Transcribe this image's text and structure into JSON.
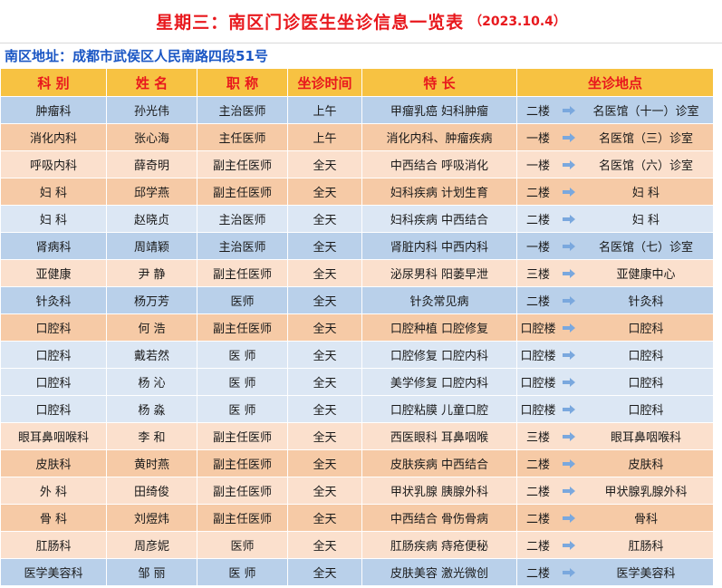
{
  "title": "星期三：南区门诊医生坐诊信息一览表",
  "date": "（2023.10.4）",
  "address": "南区地址：成都市武侯区人民南路四段51号",
  "headers": [
    "科 别",
    "姓 名",
    "职 称",
    "坐诊时间",
    "特 长",
    "坐诊地点"
  ],
  "rows": [
    {
      "dept": "肿瘤科",
      "name": "孙光伟",
      "title": "主治医师",
      "time": "上午",
      "specialty": "甲瘤乳癌 妇科肿瘤",
      "floor": "二楼",
      "place": "名医馆（十一）诊室"
    },
    {
      "dept": "消化内科",
      "name": "张心海",
      "title": "主任医师",
      "time": "上午",
      "specialty": "消化内科、肿瘤疾病",
      "floor": "一楼",
      "place": "名医馆（三）诊室"
    },
    {
      "dept": "呼吸内科",
      "name": "薛奇明",
      "title": "副主任医师",
      "time": "全天",
      "specialty": "中西结合 呼吸消化",
      "floor": "一楼",
      "place": "名医馆（六）诊室"
    },
    {
      "dept": "妇 科",
      "name": "邱学燕",
      "title": "副主任医师",
      "time": "全天",
      "specialty": "妇科疾病 计划生育",
      "floor": "二楼",
      "place": "妇 科"
    },
    {
      "dept": "妇 科",
      "name": "赵晓贞",
      "title": "主治医师",
      "time": "全天",
      "specialty": "妇科疾病 中西结合",
      "floor": "二楼",
      "place": "妇 科"
    },
    {
      "dept": "肾病科",
      "name": "周靖颖",
      "title": "主治医师",
      "time": "全天",
      "specialty": "肾脏内科 中西内科",
      "floor": "一楼",
      "place": "名医馆（七）诊室"
    },
    {
      "dept": "亚健康",
      "name": "尹 静",
      "title": "副主任医师",
      "time": "全天",
      "specialty": "泌尿男科 阳萎早泄",
      "floor": "三楼",
      "place": "亚健康中心"
    },
    {
      "dept": "针灸科",
      "name": "杨万芳",
      "title": "医师",
      "time": "全天",
      "specialty": "针灸常见病",
      "floor": "二楼",
      "place": "针灸科"
    },
    {
      "dept": "口腔科",
      "name": "何 浩",
      "title": "副主任医师",
      "time": "全天",
      "specialty": "口腔种植 口腔修复",
      "floor": "口腔楼",
      "place": "口腔科"
    },
    {
      "dept": "口腔科",
      "name": "戴若然",
      "title": "医 师",
      "time": "全天",
      "specialty": "口腔修复 口腔内科",
      "floor": "口腔楼",
      "place": "口腔科"
    },
    {
      "dept": "口腔科",
      "name": "杨 沁",
      "title": "医 师",
      "time": "全天",
      "specialty": "美学修复 口腔内科",
      "floor": "口腔楼",
      "place": "口腔科"
    },
    {
      "dept": "口腔科",
      "name": "杨 淼",
      "title": "医 师",
      "time": "全天",
      "specialty": "口腔粘膜 儿童口腔",
      "floor": "口腔楼",
      "place": "口腔科"
    },
    {
      "dept": "眼耳鼻咽喉科",
      "name": "李 和",
      "title": "副主任医师",
      "time": "全天",
      "specialty": "西医眼科 耳鼻咽喉",
      "floor": "三楼",
      "place": "眼耳鼻咽喉科"
    },
    {
      "dept": "皮肤科",
      "name": "黄时燕",
      "title": "副主任医师",
      "time": "全天",
      "specialty": "皮肤疾病 中西结合",
      "floor": "二楼",
      "place": "皮肤科"
    },
    {
      "dept": "外 科",
      "name": "田绮俊",
      "title": "副主任医师",
      "time": "全天",
      "specialty": "甲状乳腺 胰腺外科",
      "floor": "二楼",
      "place": "甲状腺乳腺外科"
    },
    {
      "dept": "骨 科",
      "name": "刘煜炜",
      "title": "副主任医师",
      "time": "全天",
      "specialty": "中西结合 骨伤骨病",
      "floor": "二楼",
      "place": "骨科"
    },
    {
      "dept": "肛肠科",
      "name": "周彦妮",
      "title": "医师",
      "time": "全天",
      "specialty": "肛肠疾病 痔疮便秘",
      "floor": "二楼",
      "place": "肛肠科"
    },
    {
      "dept": "医学美容科",
      "name": "邹 丽",
      "title": "医 师",
      "time": "全天",
      "specialty": "皮肤美容 激光微创",
      "floor": "二楼",
      "place": "医学美容科"
    }
  ],
  "row_styles": [
    "blue",
    "peach",
    "light",
    "peach",
    "pale",
    "blue",
    "light",
    "blue",
    "peach",
    "pale",
    "pale",
    "pale",
    "light",
    "peach",
    "light",
    "peach",
    "light",
    "blue"
  ],
  "colors": {
    "title": "#e8181d",
    "address": "#1a56c4",
    "header_bg": "#f7c242",
    "arrow": "#7aa8de"
  },
  "icons": {
    "location_arrow": "arrow-right-icon"
  }
}
